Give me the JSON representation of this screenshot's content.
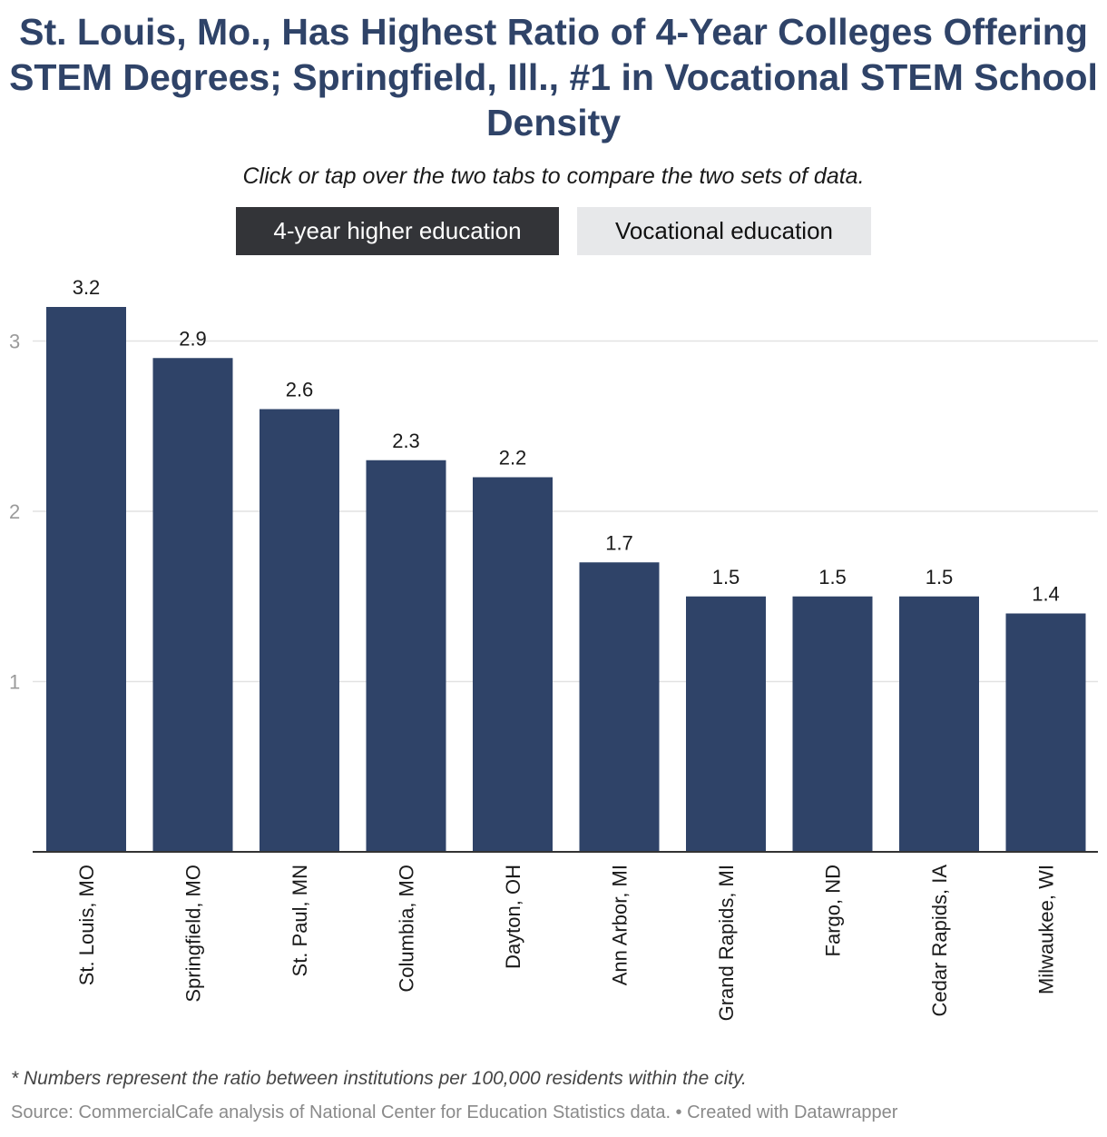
{
  "header": {
    "title": "St. Louis, Mo., Has Highest Ratio of 4-Year Colleges Offering STEM Degrees; Springfield, Ill., #1 in Vocational STEM School Density",
    "subtitle": "Click or tap over the two tabs to compare the two sets of data."
  },
  "tabs": {
    "active_label": "4-year higher education",
    "inactive_label": "Vocational education"
  },
  "footer": {
    "note": "* Numbers represent the ratio between institutions per 100,000 residents within the city.",
    "source": "Source: CommercialCafe analysis of National Center for Education Statistics data. • Created with Datawrapper"
  },
  "colors": {
    "bar": "#2f4368",
    "gridline": "#e2e2e2",
    "axis": "#333333",
    "tick_label": "#9a9a9a",
    "title": "#2f4368",
    "tab_active": "#333438",
    "tab_inactive": "#e7e8ea"
  },
  "chart_data": {
    "type": "bar",
    "categories": [
      "St. Louis, MO",
      "Springfield, MO",
      "St. Paul, MN",
      "Columbia, MO",
      "Dayton, OH",
      "Ann Arbor, MI",
      "Grand Rapids, MI",
      "Fargo, ND",
      "Cedar Rapids, IA",
      "Milwaukee, WI"
    ],
    "values": [
      3.2,
      2.9,
      2.6,
      2.3,
      2.2,
      1.7,
      1.5,
      1.5,
      1.5,
      1.4
    ],
    "value_labels": [
      "3.2",
      "2.9",
      "2.6",
      "2.3",
      "2.2",
      "1.7",
      "1.5",
      "1.5",
      "1.5",
      "1.4"
    ],
    "ylim": [
      0,
      3.2
    ],
    "yticks": [
      1,
      2,
      3
    ],
    "grid": true,
    "xlabel": "",
    "ylabel": ""
  }
}
